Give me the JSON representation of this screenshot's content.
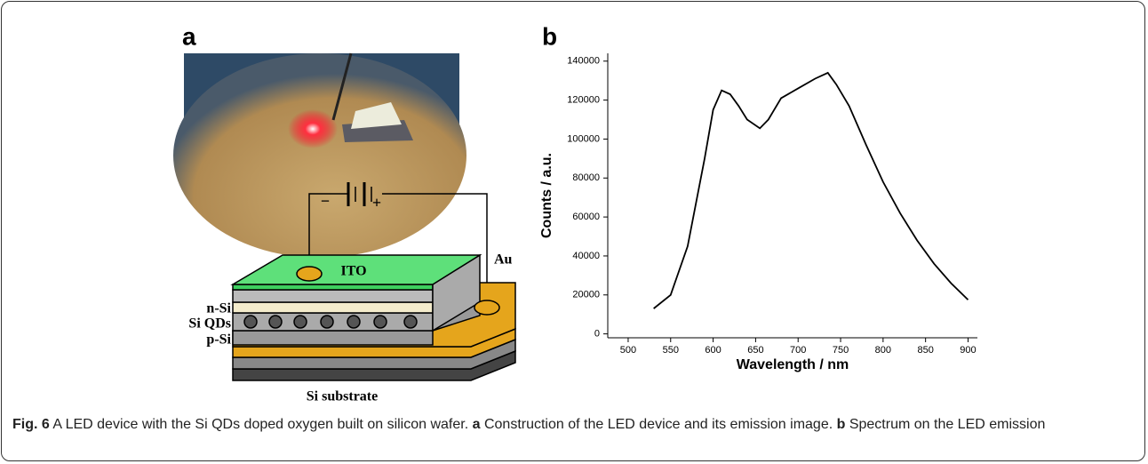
{
  "panel_a": {
    "label": "a",
    "battery_minus": "−",
    "battery_plus": "+",
    "ito": "ITO",
    "au": "Au",
    "n_si": "n-Si",
    "si_qds": "Si QDs",
    "p_si": "p-Si",
    "substrate": "Si substrate"
  },
  "panel_b": {
    "label": "b"
  },
  "chart_data": {
    "type": "line",
    "x_label": "Wavelength / nm",
    "y_label": "Counts / a.u.",
    "color": "#000000",
    "x": [
      530,
      550,
      570,
      590,
      600,
      610,
      620,
      630,
      640,
      655,
      665,
      680,
      700,
      720,
      735,
      745,
      760,
      780,
      800,
      820,
      840,
      860,
      880,
      900
    ],
    "values": [
      13000,
      20000,
      45000,
      90000,
      115000,
      125000,
      123000,
      117000,
      110000,
      105500,
      110000,
      121000,
      126000,
      131000,
      134000,
      128000,
      117000,
      97000,
      78000,
      62000,
      48000,
      36000,
      26000,
      17500
    ],
    "xlim": [
      476,
      911
    ],
    "ylim": [
      -2000,
      144000
    ],
    "xticks": [
      500,
      550,
      600,
      650,
      700,
      750,
      800,
      850,
      900
    ],
    "yticks": [
      0,
      20000,
      40000,
      60000,
      80000,
      100000,
      120000,
      140000
    ]
  },
  "caption": {
    "label": "Fig. 6",
    "text1": " A LED device with the Si QDs doped oxygen built on silicon wafer. ",
    "a": "a",
    "text2": " Construction of the LED device and its emission image. ",
    "b": "b",
    "text3": " Spectrum on the LED emission"
  }
}
